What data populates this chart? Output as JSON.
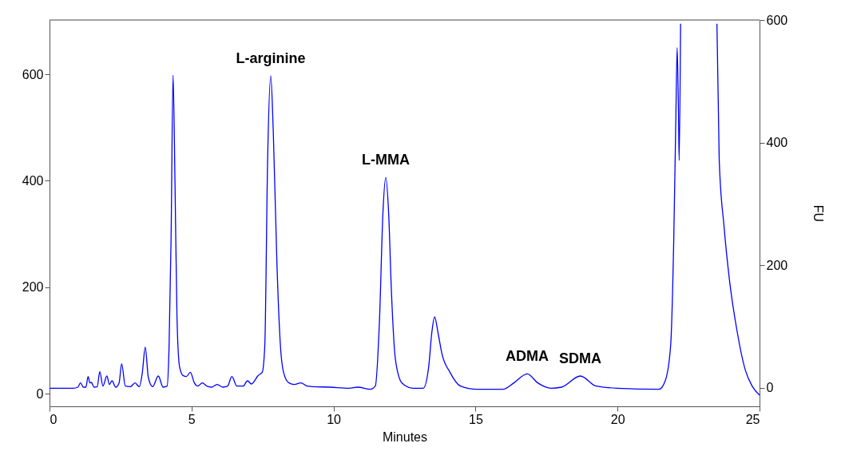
{
  "chart_data": {
    "type": "line",
    "xlabel": "Minutes",
    "y2label": "FU",
    "xlim": [
      0,
      25
    ],
    "xticks": [
      0,
      5,
      10,
      15,
      20,
      25
    ],
    "ylim": [
      -24,
      702
    ],
    "yticks": [
      0,
      200,
      400,
      600
    ],
    "y2lim": [
      -30,
      600
    ],
    "y2ticks": [
      0,
      200,
      400,
      600
    ],
    "grid": false,
    "marker": "none",
    "line_style": "solid",
    "annotations": [
      {
        "text": "L-arginine",
        "x": 7.79,
        "y": 597
      },
      {
        "text": "L-MMA",
        "x": 11.84,
        "y": 406
      },
      {
        "text": "ADMA",
        "x": 16.82,
        "y": 37
      },
      {
        "text": "SDMA",
        "x": 18.69,
        "y": 33
      }
    ],
    "series": [
      {
        "color": "#0000ff",
        "x": [
          0.0,
          0.83,
          1.0,
          1.09,
          1.19,
          1.28,
          1.36,
          1.42,
          1.47,
          1.57,
          1.68,
          1.77,
          1.88,
          2.02,
          2.11,
          2.2,
          2.33,
          2.45,
          2.54,
          2.67,
          2.85,
          3.01,
          3.16,
          3.27,
          3.37,
          3.48,
          3.63,
          3.83,
          4.0,
          4.14,
          4.21,
          4.28,
          4.35,
          4.42,
          4.49,
          4.58,
          4.7,
          4.82,
          4.96,
          5.1,
          5.22,
          5.38,
          5.54,
          5.71,
          5.9,
          6.1,
          6.27,
          6.42,
          6.6,
          6.82,
          6.97,
          7.11,
          7.35,
          7.49,
          7.58,
          7.68,
          7.79,
          7.88,
          8.01,
          8.13,
          8.24,
          8.43,
          8.62,
          8.85,
          9.08,
          9.27,
          9.88,
          10.54,
          10.86,
          11.29,
          11.47,
          11.62,
          11.74,
          11.84,
          11.94,
          12.04,
          12.18,
          12.41,
          12.79,
          13.16,
          13.35,
          13.46,
          13.56,
          13.68,
          13.82,
          14.1,
          14.47,
          15.04,
          15.97,
          16.35,
          16.82,
          17.19,
          17.66,
          18.03,
          18.69,
          19.25,
          20.0,
          21.46,
          21.68,
          21.87,
          21.98,
          22.06,
          22.1,
          22.15,
          22.17,
          22.22,
          22.85,
          23.5,
          23.58,
          23.75,
          23.94,
          24.22,
          24.5,
          24.74,
          25.0
        ],
        "values": [
          10,
          10,
          12,
          20,
          12,
          12,
          32,
          20,
          21,
          12,
          13,
          41,
          14,
          33,
          17,
          24,
          12,
          20,
          56,
          14,
          13,
          20,
          13,
          40,
          87,
          30,
          13,
          33,
          12,
          14,
          90,
          290,
          598,
          390,
          140,
          50,
          34,
          32,
          40,
          20,
          14,
          20,
          14,
          12,
          17,
          12,
          14,
          32,
          14,
          14,
          24,
          18,
          34,
          40,
          90,
          440,
          597,
          490,
          240,
          90,
          40,
          20,
          17,
          20,
          14,
          13,
          12,
          10,
          12,
          8,
          14,
          140,
          340,
          406,
          340,
          190,
          64,
          20,
          10,
          10,
          50,
          114,
          144,
          114,
          74,
          40,
          14,
          8,
          8,
          20,
          37,
          20,
          10,
          12,
          33,
          14,
          10,
          8,
          24,
          90,
          290,
          540,
          650,
          514,
          438,
          695,
          null,
          695,
          440,
          314,
          214,
          114,
          44,
          14,
          -3
        ]
      }
    ]
  }
}
